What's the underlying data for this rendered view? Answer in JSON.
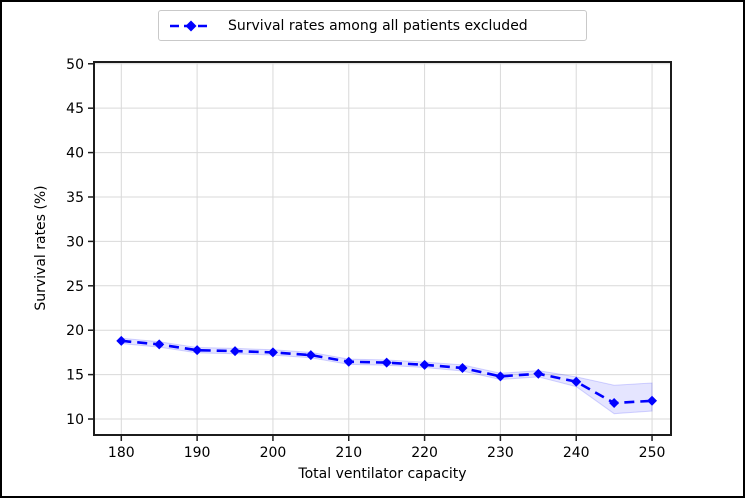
{
  "legend": {
    "label": "Survival rates among all patients excluded"
  },
  "chart_data": {
    "type": "line",
    "title": "",
    "xlabel": "Total ventilator capacity",
    "ylabel": "Survival rates (%)",
    "x_ticks": [
      180,
      190,
      200,
      210,
      220,
      230,
      240,
      250
    ],
    "y_ticks": [
      10,
      15,
      20,
      25,
      30,
      35,
      40,
      45,
      50
    ],
    "xlim": [
      176.4,
      252.5
    ],
    "ylim": [
      8.2,
      50.2
    ],
    "grid": true,
    "legend_position": "top-center-above-axes",
    "series": [
      {
        "name": "Survival rates among all patients excluded",
        "color": "#0000ff",
        "linestyle": "dashed",
        "marker": "diamond",
        "x": [
          180,
          185,
          190,
          195,
          200,
          205,
          210,
          215,
          220,
          225,
          230,
          235,
          240,
          245,
          250
        ],
        "y": [
          18.8,
          18.4,
          17.75,
          17.65,
          17.5,
          17.2,
          16.45,
          16.35,
          16.1,
          15.75,
          14.8,
          15.1,
          14.2,
          11.8,
          12.05
        ],
        "band_upper": [
          19.1,
          18.7,
          18.05,
          17.95,
          17.8,
          17.5,
          16.75,
          16.65,
          16.4,
          16.1,
          15.15,
          15.45,
          14.75,
          13.8,
          14.05
        ],
        "band_lower": [
          18.5,
          18.1,
          17.45,
          17.35,
          17.2,
          16.9,
          16.15,
          16.05,
          15.8,
          15.4,
          14.45,
          14.75,
          13.65,
          10.6,
          10.9
        ]
      }
    ],
    "colors": {
      "line": "#0000ff",
      "band": "rgba(0,0,255,0.10)",
      "band_edge": "rgba(0,0,255,0.16)",
      "grid": "#d9d9d9",
      "spine": "#1c1c1c",
      "tick_text": "#000000",
      "legend_border": "#c9c9c9"
    }
  }
}
